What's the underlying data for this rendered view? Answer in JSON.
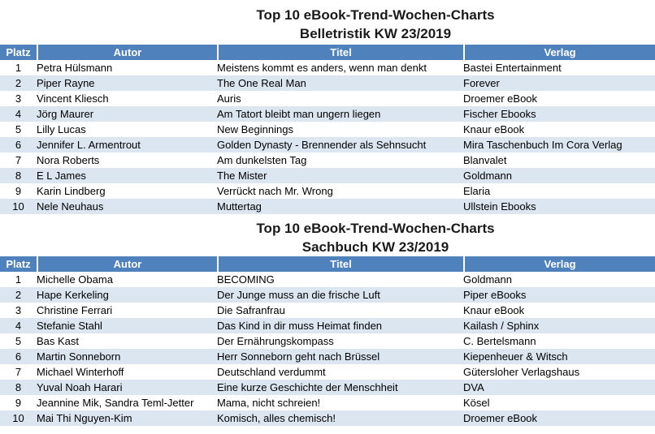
{
  "colors": {
    "header_bg": "#4f81bd",
    "header_text": "#ffffff",
    "row_alt_bg": "#dce6f1",
    "body_text": "#000000",
    "page_bg": "#ffffff"
  },
  "tables": [
    {
      "title_line1": "Top 10  eBook-Trend-Wochen-Charts",
      "title_line2": "Belletristik KW 23/2019",
      "columns": [
        "Platz",
        "Autor",
        "Titel",
        "Verlag"
      ],
      "rows": [
        {
          "platz": "1",
          "autor": "Petra Hülsmann",
          "titel": "Meistens kommt es anders, wenn man denkt",
          "verlag": "Bastei Entertainment"
        },
        {
          "platz": "2",
          "autor": "Piper Rayne",
          "titel": "The One Real Man",
          "verlag": "Forever"
        },
        {
          "platz": "3",
          "autor": "Vincent Kliesch",
          "titel": "Auris",
          "verlag": "Droemer eBook"
        },
        {
          "platz": "4",
          "autor": "Jörg Maurer",
          "titel": "Am Tatort bleibt man ungern liegen",
          "verlag": "Fischer Ebooks"
        },
        {
          "platz": "5",
          "autor": "Lilly Lucas",
          "titel": "New Beginnings",
          "verlag": "Knaur eBook"
        },
        {
          "platz": "6",
          "autor": "Jennifer L. Armentrout",
          "titel": "Golden Dynasty - Brennender als Sehnsucht",
          "verlag": "Mira Taschenbuch Im Cora Verlag"
        },
        {
          "platz": "7",
          "autor": "Nora Roberts",
          "titel": "Am dunkelsten Tag",
          "verlag": "Blanvalet"
        },
        {
          "platz": "8",
          "autor": "E L James",
          "titel": "The Mister",
          "verlag": "Goldmann"
        },
        {
          "platz": "9",
          "autor": "Karin Lindberg",
          "titel": "Verrückt nach Mr. Wrong",
          "verlag": "Elaria"
        },
        {
          "platz": "10",
          "autor": "Nele Neuhaus",
          "titel": "Muttertag",
          "verlag": "Ullstein Ebooks"
        }
      ]
    },
    {
      "title_line1": "Top 10 eBook-Trend-Wochen-Charts",
      "title_line2": "Sachbuch KW 23/2019",
      "columns": [
        "Platz",
        "Autor",
        "Titel",
        "Verlag"
      ],
      "rows": [
        {
          "platz": "1",
          "autor": "Michelle Obama",
          "titel": "BECOMING",
          "verlag": "Goldmann"
        },
        {
          "platz": "2",
          "autor": "Hape Kerkeling",
          "titel": "Der Junge muss an die frische Luft",
          "verlag": "Piper eBooks"
        },
        {
          "platz": "3",
          "autor": "Christine Ferrari",
          "titel": "Die Safranfrau",
          "verlag": "Knaur eBook"
        },
        {
          "platz": "4",
          "autor": "Stefanie Stahl",
          "titel": "Das Kind in dir muss Heimat finden",
          "verlag": "Kailash / Sphinx"
        },
        {
          "platz": "5",
          "autor": "Bas Kast",
          "titel": "Der Ernährungskompass",
          "verlag": "C. Bertelsmann"
        },
        {
          "platz": "6",
          "autor": "Martin Sonneborn",
          "titel": "Herr Sonneborn geht nach Brüssel",
          "verlag": "Kiepenheuer & Witsch"
        },
        {
          "platz": "7",
          "autor": "Michael Winterhoff",
          "titel": "Deutschland verdummt",
          "verlag": "Gütersloher Verlagshaus"
        },
        {
          "platz": "8",
          "autor": "Yuval Noah Harari",
          "titel": "Eine kurze Geschichte der Menschheit",
          "verlag": "DVA"
        },
        {
          "platz": "9",
          "autor": "Jeannine Mik, Sandra Teml-Jetter",
          "titel": "Mama, nicht schreien!",
          "verlag": "Kösel"
        },
        {
          "platz": "10",
          "autor": "Mai Thi Nguyen-Kim",
          "titel": "Komisch, alles chemisch!",
          "verlag": "Droemer eBook"
        }
      ]
    }
  ]
}
